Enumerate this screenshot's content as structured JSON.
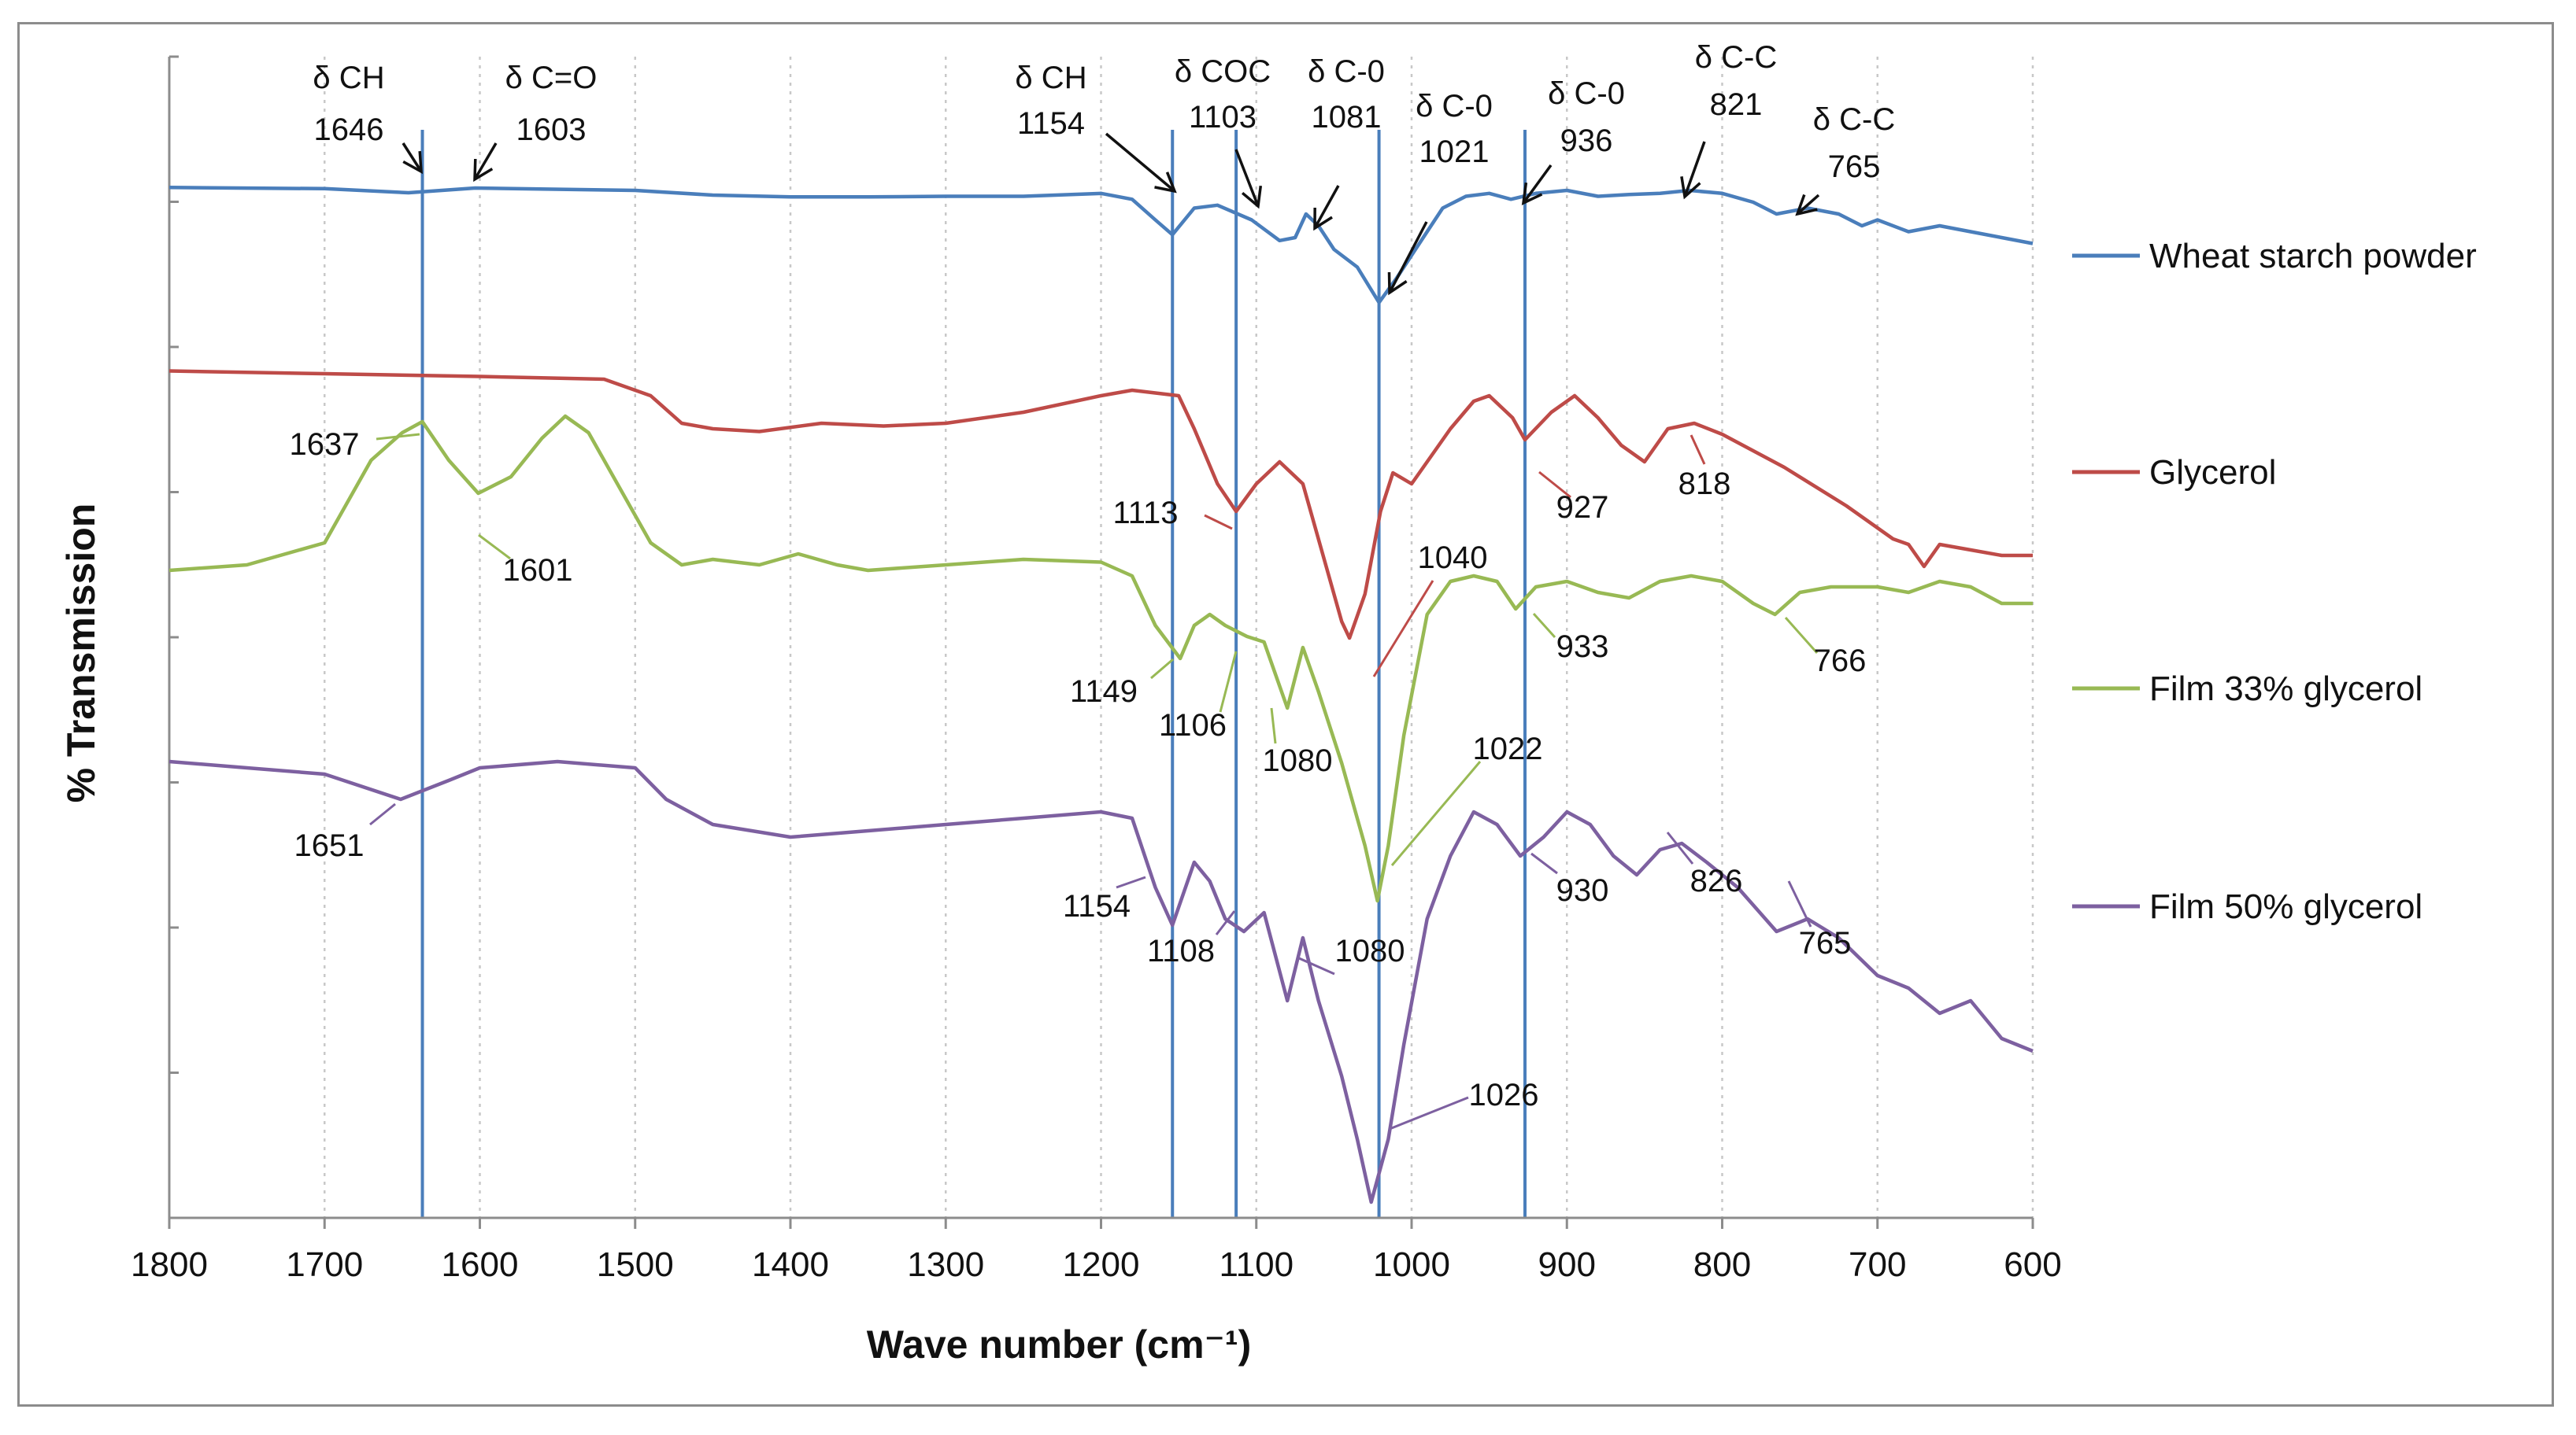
{
  "chart_data": {
    "type": "line",
    "title": "",
    "xlabel": "Wave number (cm⁻¹)",
    "ylabel": "% Transmission",
    "xlim": [
      1800,
      600
    ],
    "x_reversed": true,
    "grid": "vertical dotted",
    "legend_position": "right",
    "x_ticks": [
      "1800",
      "1700",
      "1600",
      "1500",
      "1400",
      "1300",
      "1200",
      "1100",
      "1000",
      "900",
      "800",
      "700",
      "600"
    ],
    "y_tick_marks": 8,
    "series": [
      {
        "name": "Wheat starch powder",
        "color": "#4a7ebb",
        "points": [
          [
            1800,
            0.5
          ],
          [
            1700,
            0.3
          ],
          [
            1646,
            -0.4
          ],
          [
            1603,
            0.4
          ],
          [
            1500,
            0
          ],
          [
            1450,
            -0.8
          ],
          [
            1400,
            -1.1
          ],
          [
            1350,
            -1.1
          ],
          [
            1300,
            -1.0
          ],
          [
            1250,
            -1.0
          ],
          [
            1200,
            -0.5
          ],
          [
            1180,
            -1.5
          ],
          [
            1165,
            -5
          ],
          [
            1154,
            -7.5
          ],
          [
            1140,
            -3.0
          ],
          [
            1125,
            -2.5
          ],
          [
            1103,
            -5
          ],
          [
            1085,
            -8.5
          ],
          [
            1075,
            -8
          ],
          [
            1068,
            -4
          ],
          [
            1060,
            -6
          ],
          [
            1050,
            -10
          ],
          [
            1035,
            -13
          ],
          [
            1021,
            -19
          ],
          [
            1010,
            -15
          ],
          [
            1000,
            -11
          ],
          [
            990,
            -7
          ],
          [
            980,
            -3
          ],
          [
            965,
            -1
          ],
          [
            950,
            -0.5
          ],
          [
            936,
            -1.5
          ],
          [
            920,
            -0.5
          ],
          [
            900,
            0
          ],
          [
            880,
            -1
          ],
          [
            860,
            -0.7
          ],
          [
            840,
            -0.5
          ],
          [
            821,
            0
          ],
          [
            800,
            -0.5
          ],
          [
            780,
            -2
          ],
          [
            765,
            -4
          ],
          [
            745,
            -3
          ],
          [
            725,
            -4
          ],
          [
            710,
            -6
          ],
          [
            700,
            -5
          ],
          [
            680,
            -7
          ],
          [
            660,
            -6
          ],
          [
            640,
            -7
          ],
          [
            620,
            -8
          ],
          [
            600,
            -9
          ]
        ]
      },
      {
        "name": "Glycerol",
        "color": "#be4b48",
        "points": [
          [
            1800,
            0.5
          ],
          [
            1700,
            0
          ],
          [
            1600,
            -0.5
          ],
          [
            1520,
            -1
          ],
          [
            1490,
            -4
          ],
          [
            1470,
            -9
          ],
          [
            1450,
            -10
          ],
          [
            1420,
            -10.5
          ],
          [
            1380,
            -9
          ],
          [
            1340,
            -9.5
          ],
          [
            1300,
            -9
          ],
          [
            1250,
            -7
          ],
          [
            1200,
            -4
          ],
          [
            1180,
            -3
          ],
          [
            1150,
            -4
          ],
          [
            1140,
            -10
          ],
          [
            1125,
            -20
          ],
          [
            1113,
            -25
          ],
          [
            1100,
            -20
          ],
          [
            1085,
            -16
          ],
          [
            1070,
            -20
          ],
          [
            1055,
            -35
          ],
          [
            1045,
            -45
          ],
          [
            1040,
            -48
          ],
          [
            1030,
            -40
          ],
          [
            1020,
            -25
          ],
          [
            1012,
            -18
          ],
          [
            1000,
            -20
          ],
          [
            985,
            -14
          ],
          [
            975,
            -10
          ],
          [
            960,
            -5
          ],
          [
            950,
            -4
          ],
          [
            935,
            -8
          ],
          [
            927,
            -12
          ],
          [
            910,
            -7
          ],
          [
            895,
            -4
          ],
          [
            880,
            -8
          ],
          [
            865,
            -13
          ],
          [
            850,
            -16
          ],
          [
            835,
            -10
          ],
          [
            818,
            -9
          ],
          [
            800,
            -11
          ],
          [
            760,
            -17
          ],
          [
            720,
            -24
          ],
          [
            690,
            -30
          ],
          [
            680,
            -31
          ],
          [
            670,
            -35
          ],
          [
            660,
            -31
          ],
          [
            640,
            -32
          ],
          [
            620,
            -33
          ],
          [
            600,
            -33
          ]
        ]
      },
      {
        "name": "Film 33% glycerol",
        "color": "#98b954",
        "points": [
          [
            1800,
            0
          ],
          [
            1750,
            1
          ],
          [
            1700,
            5
          ],
          [
            1670,
            20
          ],
          [
            1650,
            25
          ],
          [
            1637,
            27
          ],
          [
            1620,
            20
          ],
          [
            1601,
            14
          ],
          [
            1580,
            17
          ],
          [
            1560,
            24
          ],
          [
            1545,
            28
          ],
          [
            1530,
            25
          ],
          [
            1510,
            15
          ],
          [
            1490,
            5
          ],
          [
            1470,
            1
          ],
          [
            1450,
            2
          ],
          [
            1420,
            1
          ],
          [
            1395,
            3
          ],
          [
            1370,
            1
          ],
          [
            1350,
            0
          ],
          [
            1300,
            1
          ],
          [
            1250,
            2
          ],
          [
            1200,
            1.5
          ],
          [
            1180,
            -1
          ],
          [
            1165,
            -10
          ],
          [
            1149,
            -16
          ],
          [
            1140,
            -10
          ],
          [
            1130,
            -8
          ],
          [
            1120,
            -10
          ],
          [
            1106,
            -12
          ],
          [
            1095,
            -13
          ],
          [
            1080,
            -25
          ],
          [
            1070,
            -14
          ],
          [
            1060,
            -22
          ],
          [
            1045,
            -35
          ],
          [
            1030,
            -50
          ],
          [
            1022,
            -60
          ],
          [
            1015,
            -50
          ],
          [
            1005,
            -30
          ],
          [
            990,
            -8
          ],
          [
            975,
            -2
          ],
          [
            960,
            -1
          ],
          [
            945,
            -2
          ],
          [
            933,
            -7
          ],
          [
            920,
            -3
          ],
          [
            900,
            -2
          ],
          [
            880,
            -4
          ],
          [
            860,
            -5
          ],
          [
            840,
            -2
          ],
          [
            820,
            -1
          ],
          [
            800,
            -2
          ],
          [
            780,
            -6
          ],
          [
            766,
            -8
          ],
          [
            750,
            -4
          ],
          [
            730,
            -3
          ],
          [
            700,
            -3
          ],
          [
            680,
            -4
          ],
          [
            660,
            -2
          ],
          [
            640,
            -3
          ],
          [
            620,
            -6
          ],
          [
            600,
            -6
          ]
        ]
      },
      {
        "name": "Film 50% glycerol",
        "color": "#7d60a0",
        "points": [
          [
            1800,
            0
          ],
          [
            1750,
            -1
          ],
          [
            1700,
            -2
          ],
          [
            1651,
            -6
          ],
          [
            1620,
            -3
          ],
          [
            1600,
            -1
          ],
          [
            1550,
            0
          ],
          [
            1500,
            -1
          ],
          [
            1480,
            -6
          ],
          [
            1450,
            -10
          ],
          [
            1400,
            -12
          ],
          [
            1350,
            -11
          ],
          [
            1300,
            -10
          ],
          [
            1250,
            -9
          ],
          [
            1200,
            -8
          ],
          [
            1180,
            -9
          ],
          [
            1165,
            -20
          ],
          [
            1154,
            -26
          ],
          [
            1140,
            -16
          ],
          [
            1130,
            -19
          ],
          [
            1120,
            -25
          ],
          [
            1108,
            -27
          ],
          [
            1095,
            -24
          ],
          [
            1080,
            -38
          ],
          [
            1070,
            -28
          ],
          [
            1060,
            -38
          ],
          [
            1045,
            -50
          ],
          [
            1035,
            -60
          ],
          [
            1026,
            -70
          ],
          [
            1015,
            -60
          ],
          [
            1005,
            -45
          ],
          [
            990,
            -25
          ],
          [
            975,
            -15
          ],
          [
            960,
            -8
          ],
          [
            945,
            -10
          ],
          [
            930,
            -15
          ],
          [
            915,
            -12
          ],
          [
            900,
            -8
          ],
          [
            885,
            -10
          ],
          [
            870,
            -15
          ],
          [
            855,
            -18
          ],
          [
            840,
            -14
          ],
          [
            826,
            -13
          ],
          [
            810,
            -16
          ],
          [
            790,
            -20
          ],
          [
            765,
            -27
          ],
          [
            745,
            -25
          ],
          [
            725,
            -28
          ],
          [
            700,
            -34
          ],
          [
            680,
            -36
          ],
          [
            660,
            -40
          ],
          [
            640,
            -38
          ],
          [
            620,
            -44
          ],
          [
            600,
            -46
          ]
        ]
      }
    ],
    "reference_lines": [
      1637,
      1154,
      1113,
      1021,
      927
    ],
    "top_annotations": [
      {
        "label": "δ CH",
        "value": "1646"
      },
      {
        "label": "δ C=O",
        "value": "1603"
      },
      {
        "label": "δ CH",
        "value": "1154"
      },
      {
        "label": "δ COC",
        "value": "1103"
      },
      {
        "label": "δ C-0",
        "value": "1081"
      },
      {
        "label": "δ C-0",
        "value": "1021"
      },
      {
        "label": "δ C-0",
        "value": "936"
      },
      {
        "label": "δ C-C",
        "value": "821"
      },
      {
        "label": "δ C-C",
        "value": "765"
      }
    ],
    "peak_labels": [
      {
        "series": "Glycerol",
        "value": "1113"
      },
      {
        "series": "Glycerol",
        "value": "1040"
      },
      {
        "series": "Glycerol",
        "value": "927"
      },
      {
        "series": "Glycerol",
        "value": "818"
      },
      {
        "series": "Film 33% glycerol",
        "value": "1637"
      },
      {
        "series": "Film 33% glycerol",
        "value": "1601"
      },
      {
        "series": "Film 33% glycerol",
        "value": "1149"
      },
      {
        "series": "Film 33% glycerol",
        "value": "1106"
      },
      {
        "series": "Film 33% glycerol",
        "value": "1080"
      },
      {
        "series": "Film 33% glycerol",
        "value": "1022"
      },
      {
        "series": "Film 33% glycerol",
        "value": "933"
      },
      {
        "series": "Film 33% glycerol",
        "value": "766"
      },
      {
        "series": "Film 50% glycerol",
        "value": "1651"
      },
      {
        "series": "Film 50% glycerol",
        "value": "1154"
      },
      {
        "series": "Film 50% glycerol",
        "value": "1108"
      },
      {
        "series": "Film 50% glycerol",
        "value": "1080"
      },
      {
        "series": "Film 50% glycerol",
        "value": "1026"
      },
      {
        "series": "Film 50% glycerol",
        "value": "930"
      },
      {
        "series": "Film 50% glycerol",
        "value": "826"
      },
      {
        "series": "Film 50% glycerol",
        "value": "765"
      }
    ]
  }
}
